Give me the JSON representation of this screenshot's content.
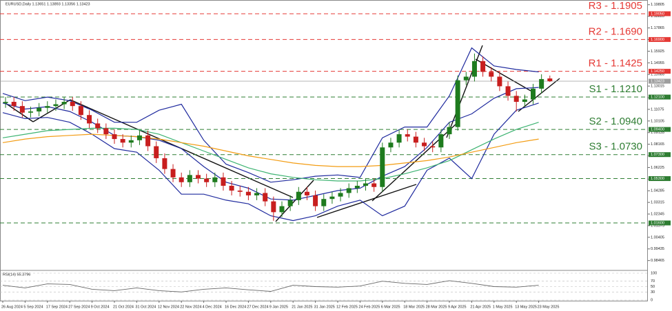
{
  "chart_data": [
    {
      "type": "candlestick",
      "title": "EURUSD,Daily 1.13651 1.13893 1.13356 1.13423",
      "up_color": "#1e7b1e",
      "down_color": "#c81e1e",
      "open": [
        1.116,
        1.117,
        1.1135,
        1.108,
        1.109,
        1.112,
        1.1135,
        1.115,
        1.117,
        1.1135,
        1.106,
        1.099,
        1.095,
        1.09,
        1.086,
        1.083,
        1.085,
        1.089,
        1.08,
        1.07,
        1.061,
        1.054,
        1.05,
        1.056,
        1.053,
        1.05,
        1.054,
        1.047,
        1.043,
        1.042,
        1.039,
        1.041,
        1.034,
        1.025,
        1.03,
        1.035,
        1.042,
        1.039,
        1.03,
        1.036,
        1.038,
        1.041,
        1.045,
        1.047,
        1.049,
        1.046,
        1.079,
        1.083,
        1.09,
        1.088,
        1.083,
        1.08,
        1.079,
        1.09,
        1.096,
        1.135,
        1.138,
        1.151,
        1.142,
        1.138,
        1.13,
        1.122,
        1.117,
        1.119,
        1.128,
        1.13651
      ],
      "high": [
        1.121,
        1.121,
        1.1175,
        1.113,
        1.116,
        1.1175,
        1.119,
        1.121,
        1.121,
        1.1175,
        1.11,
        1.103,
        1.099,
        1.094,
        1.09,
        1.089,
        1.093,
        1.093,
        1.084,
        1.074,
        1.065,
        1.058,
        1.06,
        1.06,
        1.057,
        1.058,
        1.058,
        1.051,
        1.047,
        1.046,
        1.045,
        1.045,
        1.038,
        1.034,
        1.039,
        1.046,
        1.046,
        1.043,
        1.04,
        1.042,
        1.045,
        1.049,
        1.051,
        1.053,
        1.053,
        1.083,
        1.087,
        1.094,
        1.094,
        1.092,
        1.087,
        1.084,
        1.094,
        1.1,
        1.139,
        1.142,
        1.1573,
        1.155,
        1.146,
        1.142,
        1.134,
        1.126,
        1.123,
        1.132,
        1.14,
        1.13893
      ],
      "low": [
        1.112,
        1.1095,
        1.104,
        1.104,
        1.105,
        1.108,
        1.1095,
        1.111,
        1.1095,
        1.102,
        1.095,
        1.091,
        1.086,
        1.082,
        1.079,
        1.079,
        1.081,
        1.076,
        1.066,
        1.057,
        1.05,
        1.046,
        1.046,
        1.049,
        1.046,
        1.046,
        1.043,
        1.039,
        1.038,
        1.035,
        1.035,
        1.03,
        1.0178,
        1.021,
        1.026,
        1.031,
        1.035,
        1.026,
        1.026,
        1.032,
        1.034,
        1.037,
        1.041,
        1.043,
        1.042,
        1.042,
        1.075,
        1.079,
        1.084,
        1.079,
        1.076,
        1.075,
        1.075,
        1.086,
        1.093,
        1.131,
        1.134,
        1.138,
        1.134,
        1.126,
        1.118,
        1.109,
        1.113,
        1.115,
        1.124,
        1.13356
      ],
      "close": [
        1.117,
        1.1135,
        1.108,
        1.109,
        1.112,
        1.1135,
        1.115,
        1.117,
        1.1135,
        1.106,
        1.099,
        1.095,
        1.09,
        1.086,
        1.083,
        1.085,
        1.089,
        1.08,
        1.07,
        1.061,
        1.054,
        1.05,
        1.056,
        1.053,
        1.05,
        1.054,
        1.047,
        1.043,
        1.042,
        1.039,
        1.041,
        1.034,
        1.025,
        1.03,
        1.035,
        1.042,
        1.039,
        1.03,
        1.036,
        1.038,
        1.041,
        1.045,
        1.047,
        1.049,
        1.046,
        1.079,
        1.083,
        1.09,
        1.088,
        1.083,
        1.08,
        1.079,
        1.09,
        1.096,
        1.135,
        1.138,
        1.151,
        1.142,
        1.138,
        1.13,
        1.122,
        1.117,
        1.119,
        1.128,
        1.136,
        1.13423
      ],
      "overlays": [
        {
          "color": "#1f2a9e",
          "values": [
            1.124,
            1.118,
            1.121,
            1.118,
            1.11,
            1.1,
            1.1,
            1.11,
            1.115,
            1.085,
            1.065,
            1.058,
            1.05,
            1.052,
            1.055,
            1.056,
            1.054,
            1.087,
            1.096,
            1.096,
            1.122,
            1.162,
            1.147,
            1.144,
            1.142
          ]
        },
        {
          "color": "#1f2a9e",
          "values": [
            1.116,
            1.111,
            1.113,
            1.109,
            1.1,
            1.089,
            1.088,
            1.085,
            1.078,
            1.063,
            1.05,
            1.045,
            1.036,
            1.035,
            1.039,
            1.043,
            1.045,
            1.055,
            1.063,
            1.079,
            1.1,
            1.107,
            1.12,
            1.128,
            1.129
          ]
        },
        {
          "color": "#1f2a9e",
          "values": [
            1.108,
            1.103,
            1.104,
            1.1,
            1.09,
            1.078,
            1.075,
            1.06,
            1.04,
            1.04,
            1.035,
            1.032,
            1.022,
            1.018,
            1.022,
            1.03,
            1.035,
            1.022,
            1.03,
            1.06,
            1.07,
            1.053,
            1.09,
            1.11,
            1.116
          ]
        },
        {
          "color": "#3cb371",
          "values": [
            1.087,
            1.09,
            1.093,
            1.094,
            1.095,
            1.095,
            1.094,
            1.09,
            1.083,
            1.076,
            1.069,
            1.062,
            1.057,
            1.054,
            1.052,
            1.051,
            1.051,
            1.053,
            1.057,
            1.062,
            1.068,
            1.077,
            1.086,
            1.094,
            1.1
          ]
        },
        {
          "color": "#f39c12",
          "values": [
            1.083,
            1.086,
            1.088,
            1.089,
            1.09,
            1.089,
            1.088,
            1.086,
            1.083,
            1.08,
            1.076,
            1.072,
            1.069,
            1.066,
            1.064,
            1.063,
            1.063,
            1.064,
            1.066,
            1.068,
            1.071,
            1.075,
            1.079,
            1.083,
            1.086
          ]
        }
      ],
      "levels": [
        {
          "label": "R3 - 1.1905",
          "value": 1.1905,
          "tag": "1.19050",
          "color": "#e53935"
        },
        {
          "label": "R2 - 1.1690",
          "value": 1.169,
          "tag": "1.16900",
          "color": "#e53935"
        },
        {
          "label": "R1 - 1.1425",
          "value": 1.1425,
          "tag": "1.14250",
          "color": "#e53935"
        },
        {
          "label": "S1 - 1.1210",
          "value": 1.121,
          "tag": "1.12100",
          "color": "#2e7d32"
        },
        {
          "label": "S2 - 1.0940",
          "value": 1.094,
          "tag": "1.09400",
          "color": "#2e7d32"
        },
        {
          "label": "S3 - 1.0730",
          "value": 1.073,
          "tag": "1.07300",
          "color": "#2e7d32"
        },
        {
          "value": 1.053,
          "tag": "1.05300",
          "color": "#2e7d32"
        },
        {
          "value": 1.016,
          "tag": "1.01600",
          "color": "#2e7d32"
        }
      ],
      "current": {
        "value": 1.13423,
        "tag": "1.13423",
        "color": "#9e9e9e"
      },
      "ylim": [
        0.977,
        1.2008
      ],
      "yticks": [
        1.19805,
        1.18835,
        1.17865,
        1.16895,
        1.15925,
        1.14955,
        1.13985,
        1.13015,
        1.12045,
        1.11075,
        1.10105,
        1.09135,
        1.08165,
        1.07195,
        1.06225,
        1.05255,
        1.04285,
        1.03315,
        1.02345,
        1.01375,
        1.00405,
        0.99435,
        0.98465
      ],
      "x_labels": [
        "26 Aug 2024",
        "5 Sep 2024",
        "17 Sep 2024",
        "27 Sep 2024",
        "9 Oct 2024",
        "21 Oct 2024",
        "31 Oct 2024",
        "12 Nov 2024",
        "22 Nov 2024",
        "4 Dec 2024",
        "16 Dec 2024",
        "27 Dec 2024",
        "9 Jan 2025",
        "21 Jan 2025",
        "31 Jan 2025",
        "12 Feb 2025",
        "24 Feb 2025",
        "6 Mar 2025",
        "18 Mar 2025",
        "28 Mar 2025",
        "9 Apr 2025",
        "21 Apr 2025",
        "1 May 2025",
        "13 May 2025",
        "23 May 2025"
      ]
    },
    {
      "type": "line",
      "title": "RSI(14) 55.3796",
      "color": "#666666",
      "values": [
        55,
        45,
        60,
        58,
        40,
        35,
        45,
        35,
        30,
        40,
        45,
        38,
        32,
        55,
        50,
        48,
        52,
        70,
        62,
        58,
        72,
        62,
        50,
        48,
        55
      ],
      "ylim": [
        0,
        100
      ],
      "yticks": [
        0,
        30,
        50,
        70,
        100
      ]
    }
  ]
}
